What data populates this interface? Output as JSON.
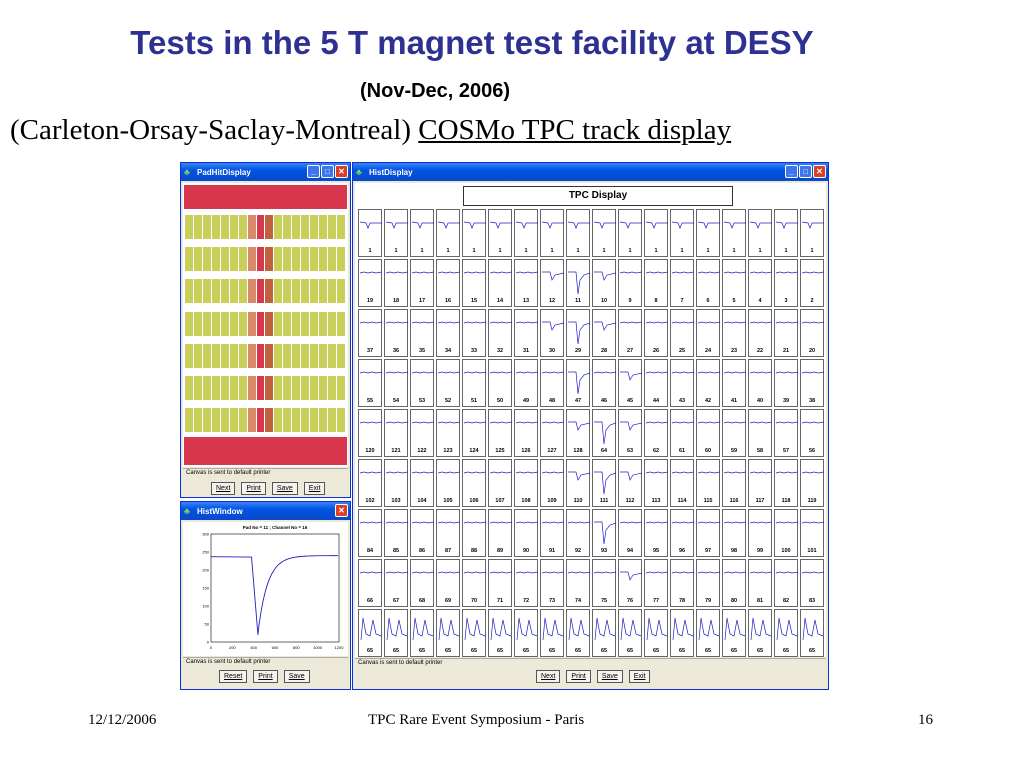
{
  "slide": {
    "title": "Tests in the 5 T magnet test facility at DESY",
    "subtitle": "(Nov-Dec, 2006)",
    "line3_prefix": "(Carleton-Orsay-Saclay-Montreal) ",
    "line3_link": "COSMo TPC track display"
  },
  "footer": {
    "date": "12/12/2006",
    "center": "TPC Rare Event Symposium - Paris",
    "page": "16"
  },
  "pad_window": {
    "title": "PadHitDisplay",
    "status": "Canvas is sent to default printer",
    "buttons": [
      "Next",
      "Print",
      "Save",
      "Exit"
    ]
  },
  "hist_window": {
    "title": "HistWindow",
    "plot_title": "Pad No = 11 ; Channel No = 16",
    "y_ticks": [
      "300",
      "250",
      "200",
      "150",
      "100",
      "50",
      "0"
    ],
    "x_ticks": [
      "0",
      "200",
      "400",
      "600",
      "800",
      "1000",
      "1200"
    ],
    "status": "Canvas is sent to default printer",
    "buttons": [
      "Reset",
      "Print",
      "Save"
    ]
  },
  "hist_display": {
    "title": "HistDisplay",
    "canvas_title": "TPC Display",
    "status": "Canvas is sent to default printer",
    "buttons": [
      "Next",
      "Print",
      "Save",
      "Exit"
    ],
    "rows": [
      [
        "1",
        "1",
        "1",
        "1",
        "1",
        "1",
        "1",
        "1",
        "1",
        "1",
        "1",
        "1",
        "1",
        "1",
        "1",
        "1",
        "1",
        "1"
      ],
      [
        "19",
        "18",
        "17",
        "16",
        "15",
        "14",
        "13",
        "12",
        "11",
        "10",
        "9",
        "8",
        "7",
        "6",
        "5",
        "4",
        "3",
        "2"
      ],
      [
        "37",
        "36",
        "35",
        "34",
        "33",
        "32",
        "31",
        "30",
        "29",
        "28",
        "27",
        "26",
        "25",
        "24",
        "23",
        "22",
        "21",
        "20"
      ],
      [
        "55",
        "54",
        "53",
        "52",
        "51",
        "50",
        "49",
        "48",
        "47",
        "46",
        "45",
        "44",
        "43",
        "42",
        "41",
        "40",
        "39",
        "38"
      ],
      [
        "120",
        "121",
        "122",
        "123",
        "124",
        "125",
        "126",
        "127",
        "128",
        "64",
        "63",
        "62",
        "61",
        "60",
        "59",
        "58",
        "57",
        "56"
      ],
      [
        "102",
        "103",
        "104",
        "105",
        "106",
        "107",
        "108",
        "109",
        "110",
        "111",
        "112",
        "113",
        "114",
        "115",
        "116",
        "117",
        "118",
        "119"
      ],
      [
        "84",
        "85",
        "86",
        "87",
        "88",
        "89",
        "90",
        "91",
        "92",
        "93",
        "94",
        "95",
        "96",
        "97",
        "98",
        "99",
        "100",
        "101"
      ],
      [
        "66",
        "67",
        "68",
        "69",
        "70",
        "71",
        "72",
        "73",
        "74",
        "75",
        "76",
        "77",
        "78",
        "79",
        "80",
        "81",
        "82",
        "83"
      ],
      [
        "65",
        "65",
        "65",
        "65",
        "65",
        "65",
        "65",
        "65",
        "65",
        "65",
        "65",
        "65",
        "65",
        "65",
        "65",
        "65",
        "65",
        "65"
      ]
    ]
  },
  "colors": {
    "title_blue": "#2e3192",
    "pad_red": "#d7384d",
    "pad_yellow": "#c8cf5a",
    "trace_blue": "#2020c0"
  }
}
